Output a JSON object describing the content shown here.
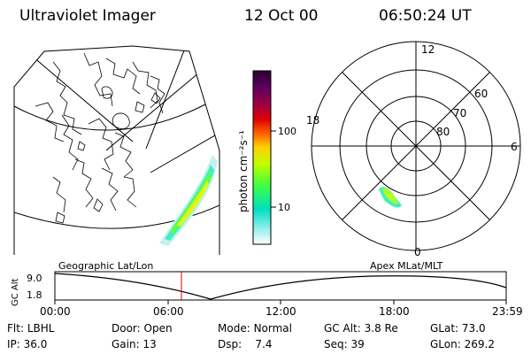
{
  "header": {
    "title": "Ultraviolet Imager",
    "date": "12 Oct 00",
    "time": "06:50:24 UT"
  },
  "colorbar": {
    "unit": "photon cm⁻²s⁻¹",
    "ticks": [
      "100",
      "10"
    ],
    "colors": [
      "#2a0030",
      "#600060",
      "#a00040",
      "#e00000",
      "#ff6000",
      "#ffd000",
      "#c0ff00",
      "#40ff40",
      "#00e0c0",
      "#a0f0f0",
      "#ffffff"
    ]
  },
  "polar": {
    "lat_labels": [
      "80",
      "70",
      "60"
    ],
    "mlt_labels": [
      "12",
      "18",
      "6",
      "0"
    ]
  },
  "timeline": {
    "left_label": "Geographic Lat/Lon",
    "right_label": "Apex MLat/MLT",
    "axis_label": "GC Alt",
    "y_ticks": [
      "9.0",
      "1.8"
    ],
    "x_ticks": [
      "00:00",
      "06:00",
      "12:00",
      "18:00",
      "23:59"
    ],
    "cursor_time": "06:50"
  },
  "status": {
    "row1": [
      {
        "label": "Flt:",
        "value": "LBHL"
      },
      {
        "label": "Door:",
        "value": "Open"
      },
      {
        "label": "Mode:",
        "value": "Normal"
      },
      {
        "label": "GC Alt:",
        "value": "3.8 Re"
      },
      {
        "label": "GLat:",
        "value": "73.0"
      }
    ],
    "row2": [
      {
        "label": "IP:",
        "value": "36.0"
      },
      {
        "label": "Gain:",
        "value": "13"
      },
      {
        "label": "Dsp:",
        "value": "7.4"
      },
      {
        "label": "Seq:",
        "value": "39"
      },
      {
        "label": "GLon:",
        "value": "269.2"
      }
    ]
  }
}
